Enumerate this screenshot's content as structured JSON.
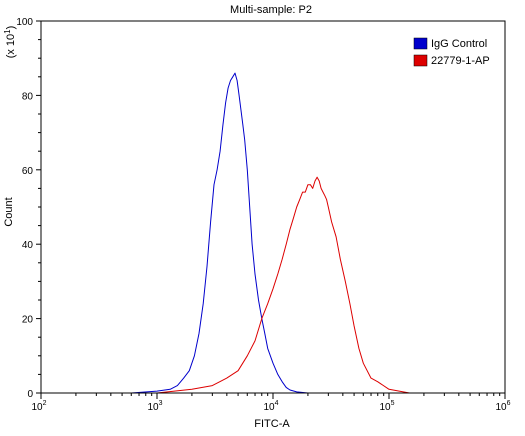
{
  "chart_data": {
    "type": "line",
    "title": "Multi-sample: P2",
    "xlabel": "FITC-A",
    "ylabel": "Count",
    "y_multiplier_label": "(x 10",
    "y_multiplier_exp": "1",
    "y_multiplier_close": ")",
    "x_scale": "log",
    "xlim": [
      100,
      1000000
    ],
    "ylim": [
      0,
      100
    ],
    "x_ticks": [
      {
        "base": "10",
        "exp": "2",
        "value": 100
      },
      {
        "base": "10",
        "exp": "3",
        "value": 1000
      },
      {
        "base": "10",
        "exp": "4",
        "value": 10000
      },
      {
        "base": "10",
        "exp": "5",
        "value": 100000
      },
      {
        "base": "10",
        "exp": "6",
        "value": 1000000
      }
    ],
    "y_ticks": [
      "0",
      "20",
      "40",
      "60",
      "80",
      "100"
    ],
    "grid": false,
    "legend_position": "top-right",
    "series": [
      {
        "name": "IgG Control",
        "color": "#0000cc",
        "x": [
          300,
          600,
          1000,
          1300,
          1500,
          1700,
          1900,
          2100,
          2300,
          2500,
          2700,
          2900,
          3100,
          3300,
          3500,
          3700,
          3900,
          4100,
          4300,
          4500,
          4700,
          4900,
          5100,
          5300,
          5500,
          5700,
          6000,
          6300,
          6600,
          7000,
          7500,
          8000,
          8500,
          9000,
          10000,
          11000,
          12000,
          13000,
          14000,
          16000,
          20000
        ],
        "y": [
          0,
          0,
          0.5,
          1,
          2,
          4,
          6,
          10,
          16,
          24,
          34,
          46,
          56,
          60,
          65,
          72,
          78,
          82,
          84,
          85,
          86,
          84,
          80,
          76,
          72,
          68,
          60,
          50,
          40,
          32,
          25,
          20,
          16,
          12,
          8,
          5,
          3,
          1.5,
          0.8,
          0.3,
          0
        ]
      },
      {
        "name": "22779-1-AP",
        "color": "#dd0000",
        "x": [
          1000,
          2000,
          3000,
          4000,
          5000,
          6000,
          7000,
          8000,
          9000,
          10000,
          11000,
          12000,
          13000,
          14000,
          15000,
          16000,
          17000,
          18000,
          19000,
          20000,
          21000,
          22000,
          23000,
          24000,
          25000,
          26000,
          27000,
          28000,
          29000,
          30000,
          32000,
          35000,
          38000,
          42000,
          46000,
          50000,
          55000,
          60000,
          70000,
          80000,
          100000,
          150000
        ],
        "y": [
          0,
          1,
          2,
          4,
          6,
          10,
          14,
          20,
          24,
          28,
          32,
          36,
          40,
          44,
          47,
          50,
          52,
          54,
          54,
          56,
          56,
          55,
          57,
          58,
          57,
          55,
          54,
          53,
          52,
          50,
          46,
          42,
          36,
          30,
          24,
          18,
          12,
          8,
          4,
          3,
          1,
          0
        ]
      }
    ]
  }
}
